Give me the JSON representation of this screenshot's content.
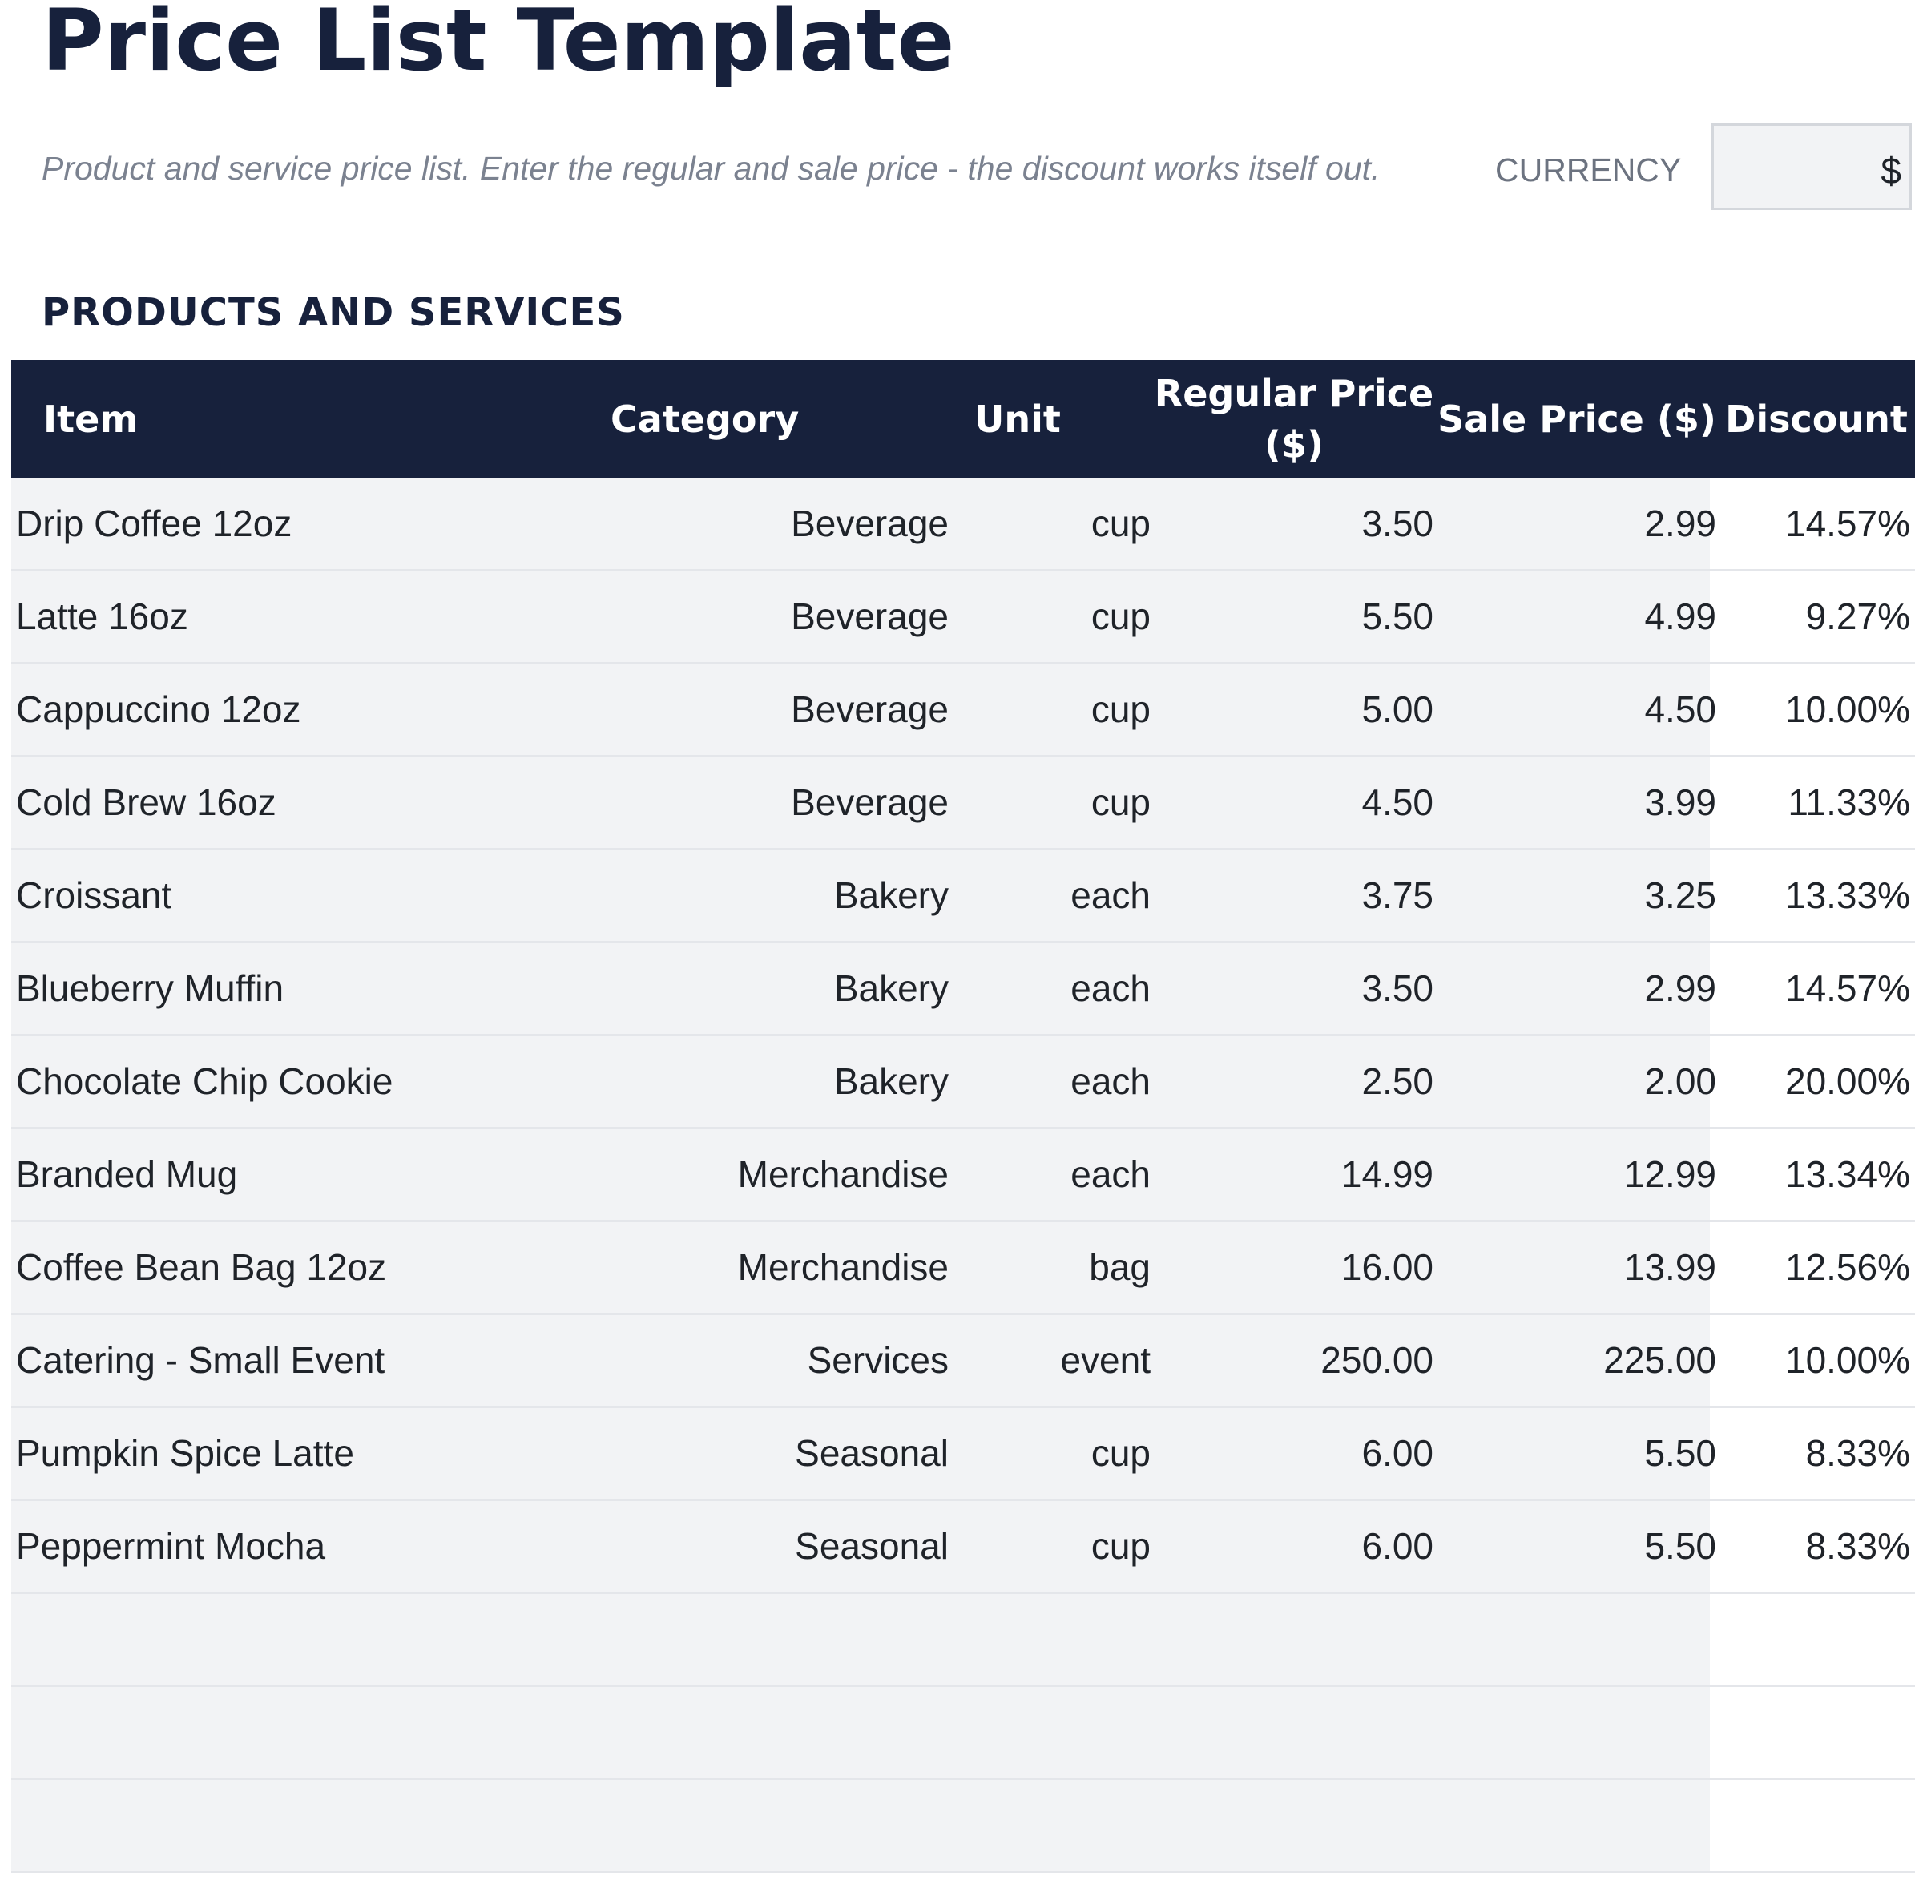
{
  "header": {
    "title": "Price List Template",
    "subtitle": "Product and service price list. Enter the regular and sale price - the discount works itself out.",
    "currency_label": "CURRENCY",
    "currency_value": "$"
  },
  "section": {
    "title": "PRODUCTS AND SERVICES"
  },
  "table": {
    "columns": {
      "item": "Item",
      "category": "Category",
      "unit": "Unit",
      "regular_price": "Regular Price ($)",
      "sale_price": "Sale Price ($)",
      "discount": "Discount"
    },
    "rows": [
      {
        "item": "Drip Coffee 12oz",
        "category": "Beverage",
        "unit": "cup",
        "regular": "3.50",
        "sale": "2.99",
        "discount": "14.57%"
      },
      {
        "item": "Latte 16oz",
        "category": "Beverage",
        "unit": "cup",
        "regular": "5.50",
        "sale": "4.99",
        "discount": "9.27%"
      },
      {
        "item": "Cappuccino 12oz",
        "category": "Beverage",
        "unit": "cup",
        "regular": "5.00",
        "sale": "4.50",
        "discount": "10.00%"
      },
      {
        "item": "Cold Brew 16oz",
        "category": "Beverage",
        "unit": "cup",
        "regular": "4.50",
        "sale": "3.99",
        "discount": "11.33%"
      },
      {
        "item": "Croissant",
        "category": "Bakery",
        "unit": "each",
        "regular": "3.75",
        "sale": "3.25",
        "discount": "13.33%"
      },
      {
        "item": "Blueberry Muffin",
        "category": "Bakery",
        "unit": "each",
        "regular": "3.50",
        "sale": "2.99",
        "discount": "14.57%"
      },
      {
        "item": "Chocolate Chip Cookie",
        "category": "Bakery",
        "unit": "each",
        "regular": "2.50",
        "sale": "2.00",
        "discount": "20.00%"
      },
      {
        "item": "Branded Mug",
        "category": "Merchandise",
        "unit": "each",
        "regular": "14.99",
        "sale": "12.99",
        "discount": "13.34%"
      },
      {
        "item": "Coffee Bean Bag 12oz",
        "category": "Merchandise",
        "unit": "bag",
        "regular": "16.00",
        "sale": "13.99",
        "discount": "12.56%"
      },
      {
        "item": "Catering - Small Event",
        "category": "Services",
        "unit": "event",
        "regular": "250.00",
        "sale": "225.00",
        "discount": "10.00%"
      },
      {
        "item": "Pumpkin Spice Latte",
        "category": "Seasonal",
        "unit": "cup",
        "regular": "6.00",
        "sale": "5.50",
        "discount": "8.33%"
      },
      {
        "item": "Peppermint Mocha",
        "category": "Seasonal",
        "unit": "cup",
        "regular": "6.00",
        "sale": "5.50",
        "discount": "8.33%"
      },
      {
        "item": "",
        "category": "",
        "unit": "",
        "regular": "",
        "sale": "",
        "discount": ""
      },
      {
        "item": "",
        "category": "",
        "unit": "",
        "regular": "",
        "sale": "",
        "discount": ""
      },
      {
        "item": "",
        "category": "",
        "unit": "",
        "regular": "",
        "sale": "",
        "discount": ""
      }
    ]
  }
}
